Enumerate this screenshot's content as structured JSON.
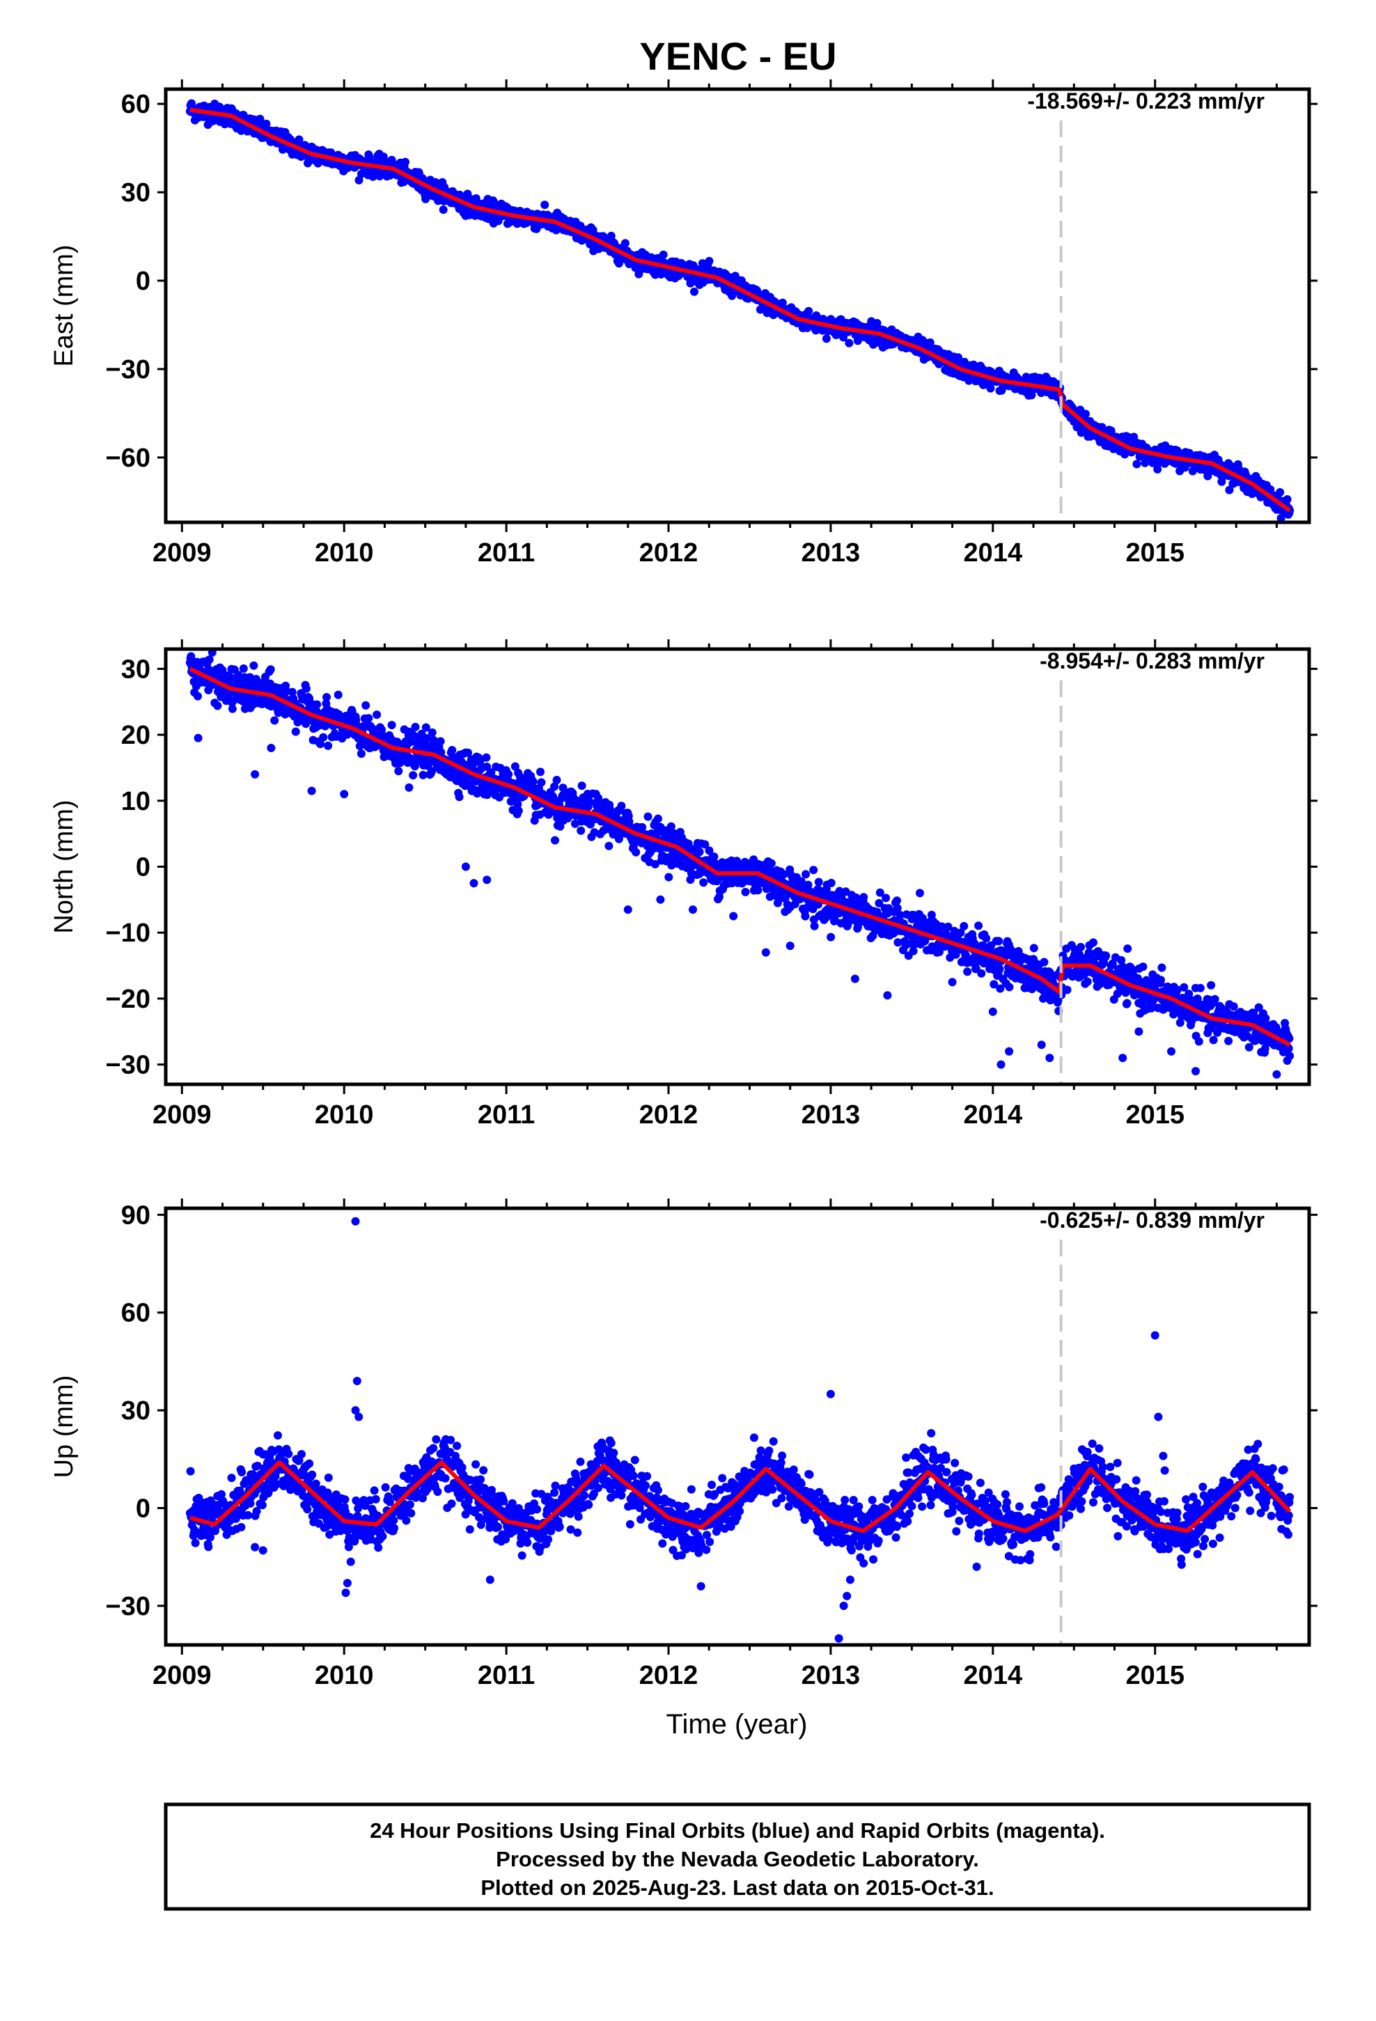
{
  "title": "YENC - EU",
  "xlabel": "Time (year)",
  "footer": [
    "24 Hour Positions Using Final Orbits (blue) and Rapid Orbits (magenta).",
    "Processed by the Nevada Geodetic Laboratory.",
    "Plotted on 2025-Aug-23. Last data on 2015-Oct-31."
  ],
  "colors": {
    "points": "#0000ff",
    "model": "#ff0000",
    "event_line": "#c8c8c8",
    "frame": "#000000"
  },
  "chart_data": [
    {
      "type": "scatter",
      "ylabel": "East (mm)",
      "rate_text": "-18.569+/- 0.223 mm/yr",
      "xlim": [
        2008.9,
        2015.95
      ],
      "ylim": [
        -82,
        65
      ],
      "x_ticks": [
        2009,
        2010,
        2011,
        2012,
        2013,
        2014,
        2015
      ],
      "y_ticks": [
        60,
        30,
        0,
        -30,
        -60
      ],
      "event_line_x": 2014.42,
      "model_curve": {
        "x": [
          2009.05,
          2009.3,
          2009.55,
          2009.8,
          2010.05,
          2010.3,
          2010.55,
          2010.8,
          2011.05,
          2011.3,
          2011.55,
          2011.8,
          2012.05,
          2012.3,
          2012.55,
          2012.8,
          2013.05,
          2013.3,
          2013.55,
          2013.8,
          2014.05,
          2014.3,
          2014.41,
          2014.43,
          2014.6,
          2014.85,
          2015.1,
          2015.35,
          2015.6,
          2015.83
        ],
        "y": [
          58,
          56,
          49,
          43,
          40,
          38,
          31,
          25,
          22,
          20,
          14,
          7,
          4,
          1,
          -6,
          -13,
          -16,
          -18,
          -23,
          -30,
          -34,
          -36,
          -37,
          -42,
          -50,
          -57,
          -60,
          -62,
          -69,
          -78
        ]
      },
      "points": {
        "count": 2280,
        "x_range": [
          2009.05,
          2015.83
        ],
        "noise_sd": 1.6,
        "outliers": []
      }
    },
    {
      "type": "scatter",
      "ylabel": "North (mm)",
      "rate_text": "-8.954+/- 0.283 mm/yr",
      "xlim": [
        2008.9,
        2015.95
      ],
      "ylim": [
        -33,
        33
      ],
      "x_ticks": [
        2009,
        2010,
        2011,
        2012,
        2013,
        2014,
        2015
      ],
      "y_ticks": [
        30,
        20,
        10,
        0,
        -10,
        -20,
        -30
      ],
      "event_line_x": 2014.42,
      "model_curve": {
        "x": [
          2009.05,
          2009.3,
          2009.55,
          2009.8,
          2010.05,
          2010.3,
          2010.55,
          2010.8,
          2011.05,
          2011.3,
          2011.55,
          2011.8,
          2012.05,
          2012.3,
          2012.55,
          2012.8,
          2013.05,
          2013.3,
          2013.55,
          2013.8,
          2014.05,
          2014.3,
          2014.41,
          2014.43,
          2014.6,
          2014.85,
          2015.1,
          2015.35,
          2015.6,
          2015.83
        ],
        "y": [
          30,
          27,
          26,
          23,
          21,
          18,
          17,
          14,
          12,
          9,
          8,
          5,
          3,
          -1,
          -1,
          -4,
          -6,
          -8,
          -10,
          -12,
          -14,
          -17,
          -19,
          -15,
          -15,
          -18,
          -20,
          -23,
          -24,
          -27
        ]
      },
      "points": {
        "count": 2280,
        "x_range": [
          2009.05,
          2015.83
        ],
        "noise_sd": 1.5,
        "outliers": [
          [
            2009.1,
            19.5
          ],
          [
            2009.45,
            14
          ],
          [
            2009.55,
            18
          ],
          [
            2009.8,
            11.5
          ],
          [
            2010.0,
            11
          ],
          [
            2010.4,
            12
          ],
          [
            2010.75,
            0
          ],
          [
            2010.8,
            -2.5
          ],
          [
            2010.88,
            -2
          ],
          [
            2011.3,
            4
          ],
          [
            2011.75,
            -6.5
          ],
          [
            2011.95,
            -5
          ],
          [
            2012.15,
            -6.5
          ],
          [
            2012.4,
            -7.5
          ],
          [
            2012.6,
            -13
          ],
          [
            2012.75,
            -12
          ],
          [
            2012.9,
            -9
          ],
          [
            2013.15,
            -17
          ],
          [
            2013.35,
            -19.5
          ],
          [
            2013.55,
            -4
          ],
          [
            2013.75,
            -17.5
          ],
          [
            2014.0,
            -22
          ],
          [
            2014.05,
            -30
          ],
          [
            2014.1,
            -28
          ],
          [
            2014.3,
            -27
          ],
          [
            2014.35,
            -29
          ],
          [
            2014.8,
            -29
          ],
          [
            2014.9,
            -25
          ],
          [
            2015.1,
            -28
          ],
          [
            2015.25,
            -31
          ],
          [
            2015.75,
            -31.5
          ]
        ]
      }
    },
    {
      "type": "scatter",
      "ylabel": "Up (mm)",
      "rate_text": "-0.625+/- 0.839 mm/yr",
      "xlim": [
        2008.9,
        2015.95
      ],
      "ylim": [
        -42,
        92
      ],
      "x_ticks": [
        2009,
        2010,
        2011,
        2012,
        2013,
        2014,
        2015
      ],
      "y_ticks": [
        90,
        60,
        30,
        0,
        -30
      ],
      "event_line_x": 2014.42,
      "model_curve": {
        "x": [
          2009.05,
          2009.2,
          2009.4,
          2009.6,
          2009.8,
          2010.0,
          2010.2,
          2010.4,
          2010.6,
          2010.8,
          2011.0,
          2011.2,
          2011.4,
          2011.6,
          2011.8,
          2012.0,
          2012.2,
          2012.4,
          2012.6,
          2012.8,
          2013.0,
          2013.2,
          2013.4,
          2013.6,
          2013.8,
          2014.0,
          2014.2,
          2014.4,
          2014.6,
          2014.8,
          2015.0,
          2015.2,
          2015.4,
          2015.6,
          2015.83
        ],
        "y": [
          -3,
          -5,
          4,
          14,
          5,
          -4,
          -5,
          5,
          14,
          4,
          -4,
          -6,
          3,
          13,
          5,
          -3,
          -6,
          2,
          12,
          4,
          -4,
          -7,
          0,
          11,
          3,
          -4,
          -7,
          -2,
          12,
          2,
          -5,
          -7,
          2,
          11,
          -1
        ]
      },
      "points": {
        "count": 2280,
        "x_range": [
          2009.05,
          2015.83
        ],
        "noise_sd": 4.0,
        "outliers": [
          [
            2010.07,
            88
          ],
          [
            2010.08,
            39
          ],
          [
            2010.07,
            30
          ],
          [
            2010.09,
            28
          ],
          [
            2010.02,
            -23
          ],
          [
            2010.01,
            -26
          ],
          [
            2009.45,
            -12
          ],
          [
            2009.5,
            -13
          ],
          [
            2010.9,
            -22
          ],
          [
            2012.2,
            -24
          ],
          [
            2013.0,
            35
          ],
          [
            2013.05,
            -40
          ],
          [
            2013.08,
            -30
          ],
          [
            2013.1,
            -27
          ],
          [
            2013.12,
            -22
          ],
          [
            2015.0,
            53
          ],
          [
            2015.02,
            28
          ],
          [
            2015.05,
            16
          ],
          [
            2013.9,
            -18
          ],
          [
            2014.55,
            18
          ]
        ]
      }
    }
  ]
}
